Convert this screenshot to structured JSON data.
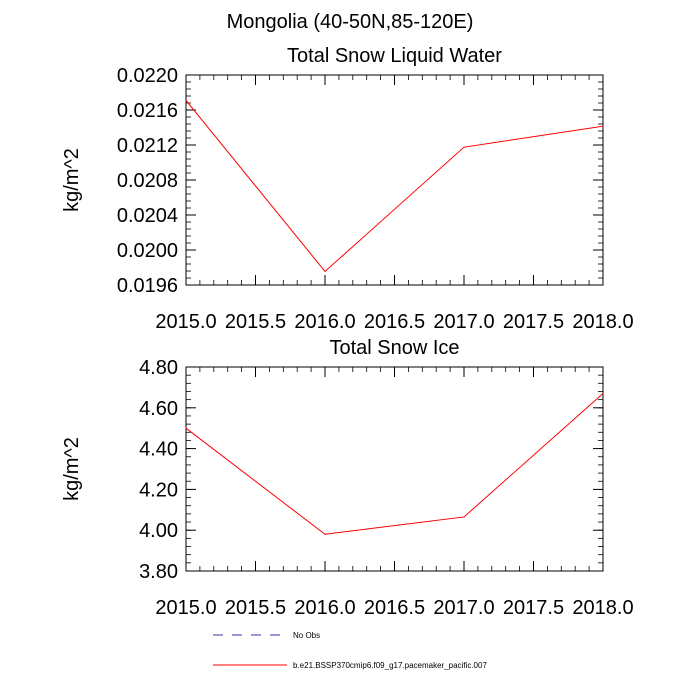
{
  "figure": {
    "suptitle": "Mongolia (40-50N,85-120E)"
  },
  "chart_data": [
    {
      "type": "line",
      "title": "Total Snow Liquid Water",
      "xlabel": "",
      "ylabel": "kg/m^2",
      "xlim": [
        2015.0,
        2018.0
      ],
      "ylim": [
        0.0196,
        0.022
      ],
      "xticks": [
        2015.0,
        2015.5,
        2016.0,
        2016.5,
        2017.0,
        2017.5,
        2018.0
      ],
      "xtick_labels": [
        "2015.0",
        "2015.5",
        "2016.0",
        "2016.5",
        "2017.0",
        "2017.5",
        "2018.0"
      ],
      "yticks": [
        0.0196,
        0.02,
        0.0204,
        0.0208,
        0.0212,
        0.0216,
        0.022
      ],
      "ytick_labels": [
        "0.0196",
        "0.0200",
        "0.0204",
        "0.0208",
        "0.0212",
        "0.0216",
        "0.0220"
      ],
      "series": [
        {
          "name": "b.e21.BSSP370cmip6.f09_g17.pacemaker_pacific.007",
          "color": "#ff0000",
          "x": [
            2015.0,
            2016.0,
            2017.0,
            2018.0
          ],
          "y": [
            0.02171,
            0.019755,
            0.021175,
            0.021415
          ]
        }
      ]
    },
    {
      "type": "line",
      "title": "Total Snow Ice",
      "xlabel": "",
      "ylabel": "kg/m^2",
      "xlim": [
        2015.0,
        2018.0
      ],
      "ylim": [
        3.8,
        4.8
      ],
      "xticks": [
        2015.0,
        2015.5,
        2016.0,
        2016.5,
        2017.0,
        2017.5,
        2018.0
      ],
      "xtick_labels": [
        "2015.0",
        "2015.5",
        "2016.0",
        "2016.5",
        "2017.0",
        "2017.5",
        "2018.0"
      ],
      "yticks": [
        3.8,
        4.0,
        4.2,
        4.4,
        4.6,
        4.8
      ],
      "ytick_labels": [
        "3.80",
        "4.00",
        "4.20",
        "4.40",
        "4.60",
        "4.80"
      ],
      "series": [
        {
          "name": "b.e21.BSSP370cmip6.f09_g17.pacemaker_pacific.007",
          "color": "#ff0000",
          "x": [
            2015.0,
            2016.0,
            2017.0,
            2018.0
          ],
          "y": [
            4.5,
            3.98,
            4.065,
            4.67
          ]
        }
      ]
    }
  ],
  "legend": [
    {
      "label": "No Obs",
      "color": "#3333aa",
      "style": "dashed"
    },
    {
      "label": "b.e21.BSSP370cmip6.f09_g17.pacemaker_pacific.007",
      "color": "#ff0000",
      "style": "solid"
    }
  ]
}
